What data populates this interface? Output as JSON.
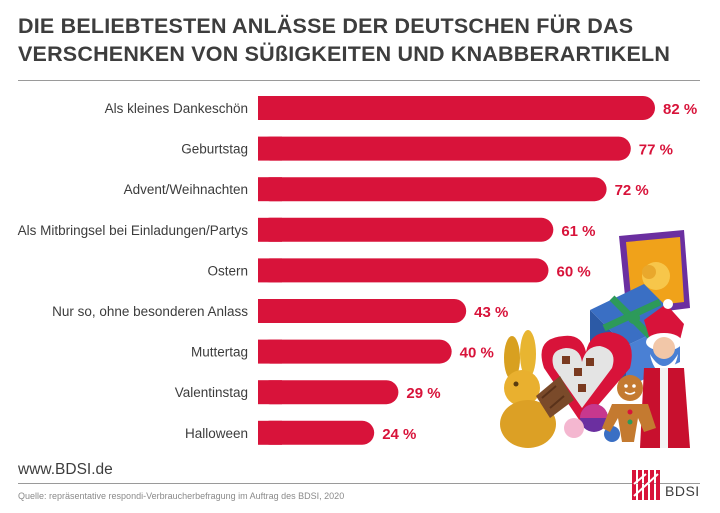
{
  "header": {
    "title_line1": "DIE BELIEBTESTEN ANLÄSSE DER DEUTSCHEN FÜR DAS",
    "title_line2": "VERSCHENKEN VON SÜßIGKEITEN UND KNABBERARTIKELN"
  },
  "footer": {
    "website": "www.BDSI.de",
    "source": "Quelle: repräsentative respondi-Verbraucherbefragung im Auftrag des BDSI, 2020",
    "logo_text": "BDSI"
  },
  "colors": {
    "bar": "#d8133a",
    "text": "#3c3c3c"
  },
  "chart_data": {
    "type": "bar",
    "orientation": "horizontal",
    "title": "DIE BELIEBTESTEN ANLÄSSE DER DEUTSCHEN FÜR DAS VERSCHENKEN VON SÜßIGKEITEN UND KNABBERARTIKELN",
    "unit": "%",
    "categories": [
      "Als kleines Dankeschön",
      "Geburtstag",
      "Advent/Weihnachten",
      "Als Mitbringsel bei Einladungen/Partys",
      "Ostern",
      "Nur so, ohne besonderen Anlass",
      "Muttertag",
      "Valentinstag",
      "Halloween"
    ],
    "values": [
      82,
      77,
      72,
      61,
      60,
      43,
      40,
      29,
      24
    ],
    "value_labels": [
      "82 %",
      "77 %",
      "72 %",
      "61 %",
      "60 %",
      "43 %",
      "40 %",
      "29 %",
      "24 %"
    ],
    "xlim": [
      0,
      82
    ]
  }
}
